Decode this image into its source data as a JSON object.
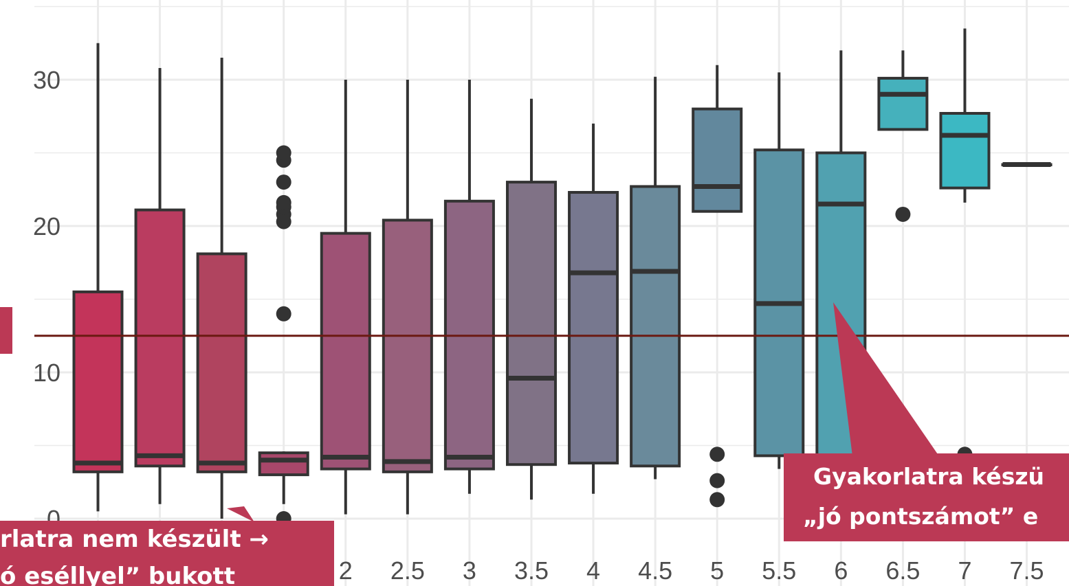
{
  "chart_data": {
    "type": "boxplot",
    "x_tick_labels": [
      "2",
      "2.5",
      "3",
      "3.5",
      "4",
      "4.5",
      "5",
      "5.5",
      "6",
      "6.5",
      "7",
      "7.5"
    ],
    "y_tick_labels": [
      "0",
      "10",
      "20",
      "30"
    ],
    "ylim": [
      0,
      34
    ],
    "grid": true,
    "reference_line": 12.5,
    "boxes": [
      {
        "x": 0.5,
        "min": 0.5,
        "q1": 3.2,
        "median": 3.8,
        "q3": 15.5,
        "max": 32.5,
        "outliers": []
      },
      {
        "x": 1.0,
        "min": 1.0,
        "q1": 3.6,
        "median": 4.3,
        "q3": 21.1,
        "max": 30.8,
        "outliers": []
      },
      {
        "x": 1.5,
        "min": 0.0,
        "q1": 3.2,
        "median": 3.8,
        "q3": 18.1,
        "max": 31.5,
        "outliers": []
      },
      {
        "x": 2.0,
        "min": 1.0,
        "q1": 3.0,
        "median": 4.0,
        "q3": 4.5,
        "max": 4.6,
        "outliers": [
          0.0,
          14.0,
          20.3,
          20.8,
          21.3,
          21.6,
          23.0,
          24.5,
          25.0
        ]
      },
      {
        "x": 2.5,
        "min": 0.3,
        "q1": 3.4,
        "median": 4.2,
        "q3": 19.5,
        "max": 30.0,
        "outliers": []
      },
      {
        "x": 3.0,
        "min": 0.3,
        "q1": 3.2,
        "median": 3.9,
        "q3": 20.4,
        "max": 30.0,
        "outliers": []
      },
      {
        "x": 3.5,
        "min": 1.7,
        "q1": 3.4,
        "median": 4.2,
        "q3": 21.7,
        "max": 30.0,
        "outliers": []
      },
      {
        "x": 4.0,
        "min": 1.3,
        "q1": 3.7,
        "median": 9.6,
        "q3": 23.0,
        "max": 28.7,
        "outliers": []
      },
      {
        "x": 4.5,
        "min": 1.7,
        "q1": 3.8,
        "median": 16.8,
        "q3": 22.3,
        "max": 27.0,
        "outliers": []
      },
      {
        "x": 5.0,
        "min": 2.7,
        "q1": 3.6,
        "median": 16.9,
        "q3": 22.7,
        "max": 30.2,
        "outliers": []
      },
      {
        "x": 5.5,
        "min": 21.0,
        "q1": 21.0,
        "median": 22.7,
        "q3": 28.0,
        "max": 31.0,
        "outliers": [
          1.3,
          2.6,
          4.4
        ]
      },
      {
        "x": 6.0,
        "min": 3.4,
        "q1": 4.3,
        "median": 14.7,
        "q3": 25.2,
        "max": 30.5,
        "outliers": []
      },
      {
        "x": 6.5,
        "min": 3.0,
        "q1": 4.0,
        "median": 21.5,
        "q3": 25.0,
        "max": 32.0,
        "outliers": []
      },
      {
        "x": 7.0,
        "min": 26.6,
        "q1": 26.6,
        "median": 29.0,
        "q3": 30.1,
        "max": 32.0,
        "outliers": [
          20.8
        ]
      },
      {
        "x": 7.5,
        "min": 21.6,
        "q1": 22.6,
        "median": 26.2,
        "q3": 27.7,
        "max": 33.5,
        "outliers": [
          4.4
        ]
      },
      {
        "x": 8.0,
        "min": 24.2,
        "q1": 24.2,
        "median": 24.2,
        "q3": 24.2,
        "max": 24.2,
        "outliers": []
      }
    ],
    "fill_colors": [
      "#c3345a",
      "#ba3c60",
      "#b0445f",
      "#a8476a",
      "#9e5275",
      "#98607c",
      "#8d6582",
      "#807286",
      "#77788f",
      "#6a8a9b",
      "#62889d",
      "#5b93a5",
      "#51a1b0",
      "#45b1bc",
      "#3cb8c3",
      "#3cb8c3"
    ],
    "stroke_color": "#333333",
    "grid_color": "#ebebeb",
    "reference_line_color": "#6b1a12",
    "callout_color": "#bb3955"
  },
  "callouts": {
    "left": {
      "line1": "rlatra nem készült →",
      "line2": "ó eséllyel” bukott"
    },
    "right": {
      "line1": "Gyakorlatra készü",
      "line2": "„jó pontszámot” e"
    }
  }
}
